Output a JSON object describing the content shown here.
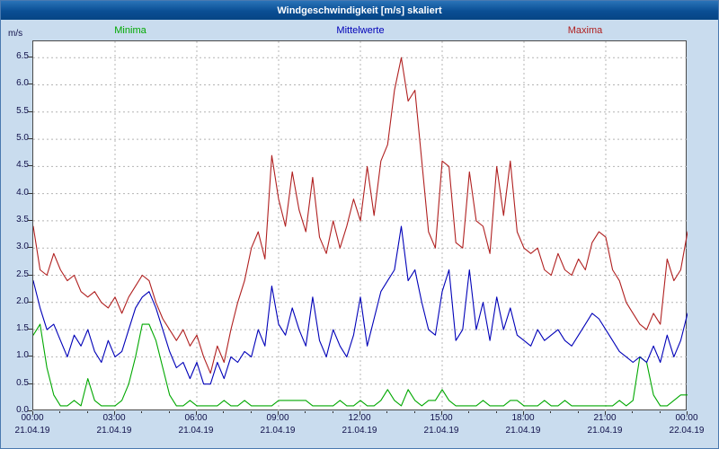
{
  "window": {
    "title": "Windgeschwindigkeit [m/s] skaliert"
  },
  "legend": [
    {
      "label": "Minima",
      "color": "#00a800"
    },
    {
      "label": "Mittelwerte",
      "color": "#0000b8"
    },
    {
      "label": "Maxima",
      "color": "#b02020"
    }
  ],
  "axis": {
    "unit_label": "m/s",
    "y_min": 0.0,
    "y_max_display": 6.5,
    "y_step": 0.5,
    "y_tick_labels": [
      "0.0",
      "0.5",
      "1.0",
      "1.5",
      "2.0",
      "2.5",
      "3.0",
      "3.5",
      "4.0",
      "4.5",
      "5.0",
      "5.5",
      "6.0",
      "6.5"
    ],
    "x_hours": [
      0,
      3,
      6,
      9,
      12,
      15,
      18,
      21,
      24
    ],
    "x_time_labels": [
      "00:00",
      "03:00",
      "06:00",
      "09:00",
      "12:00",
      "15:00",
      "18:00",
      "21:00",
      "00:00"
    ],
    "x_date_labels": [
      "21.04.19",
      "21.04.19",
      "21.04.19",
      "21.04.19",
      "21.04.19",
      "21.04.19",
      "21.04.19",
      "21.04.19",
      "22.04.19"
    ]
  },
  "colors": {
    "page_bg": "#c9dcee",
    "titlebar": "#0a4e94",
    "plot_bg": "#ffffff",
    "grid": "#b4b4b4",
    "axis_text": "#10104a",
    "plot_border": "#4a4a4a"
  },
  "chart_data": {
    "type": "line",
    "title": "Windgeschwindigkeit [m/s] skaliert",
    "xlabel": "",
    "ylabel": "m/s",
    "x_unit": "hours",
    "x_start": 0,
    "x_end": 24,
    "x_interval_minutes": 15,
    "ylim": [
      0,
      6.8
    ],
    "grid": "dashed",
    "legend_position": "top",
    "series": [
      {
        "name": "Minima",
        "color": "#00a800",
        "values": [
          1.4,
          1.6,
          0.8,
          0.3,
          0.1,
          0.1,
          0.2,
          0.1,
          0.6,
          0.2,
          0.1,
          0.1,
          0.1,
          0.2,
          0.5,
          1.0,
          1.6,
          1.6,
          1.3,
          0.8,
          0.3,
          0.1,
          0.1,
          0.2,
          0.1,
          0.1,
          0.1,
          0.1,
          0.2,
          0.1,
          0.1,
          0.2,
          0.1,
          0.1,
          0.1,
          0.1,
          0.2,
          0.2,
          0.2,
          0.2,
          0.2,
          0.1,
          0.1,
          0.1,
          0.1,
          0.2,
          0.1,
          0.1,
          0.2,
          0.1,
          0.1,
          0.2,
          0.4,
          0.2,
          0.1,
          0.4,
          0.2,
          0.1,
          0.2,
          0.2,
          0.4,
          0.2,
          0.1,
          0.1,
          0.1,
          0.1,
          0.2,
          0.1,
          0.1,
          0.1,
          0.2,
          0.2,
          0.1,
          0.1,
          0.1,
          0.2,
          0.1,
          0.1,
          0.2,
          0.1,
          0.1,
          0.1,
          0.1,
          0.1,
          0.1,
          0.1,
          0.2,
          0.1,
          0.2,
          1.0,
          0.9,
          0.3,
          0.1,
          0.1,
          0.2,
          0.3,
          0.3
        ]
      },
      {
        "name": "Mittelwerte",
        "color": "#0000b8",
        "values": [
          2.4,
          1.9,
          1.5,
          1.6,
          1.3,
          1.0,
          1.4,
          1.2,
          1.5,
          1.1,
          0.9,
          1.3,
          1.0,
          1.1,
          1.5,
          1.9,
          2.1,
          2.2,
          1.9,
          1.5,
          1.1,
          0.8,
          0.9,
          0.6,
          0.9,
          0.5,
          0.5,
          0.9,
          0.6,
          1.0,
          0.9,
          1.1,
          1.0,
          1.5,
          1.2,
          2.3,
          1.6,
          1.4,
          1.9,
          1.5,
          1.2,
          2.1,
          1.3,
          1.0,
          1.5,
          1.2,
          1.0,
          1.4,
          2.1,
          1.2,
          1.7,
          2.2,
          2.4,
          2.6,
          3.4,
          2.4,
          2.6,
          2.0,
          1.5,
          1.4,
          2.2,
          2.6,
          1.3,
          1.5,
          2.6,
          1.5,
          2.0,
          1.3,
          2.1,
          1.5,
          1.9,
          1.4,
          1.3,
          1.2,
          1.5,
          1.3,
          1.4,
          1.5,
          1.3,
          1.2,
          1.4,
          1.6,
          1.8,
          1.7,
          1.5,
          1.3,
          1.1,
          1.0,
          0.9,
          1.0,
          0.9,
          1.2,
          0.9,
          1.4,
          1.0,
          1.3,
          1.8
        ]
      },
      {
        "name": "Maxima",
        "color": "#b02020",
        "values": [
          3.4,
          2.6,
          2.5,
          2.9,
          2.6,
          2.4,
          2.5,
          2.2,
          2.1,
          2.2,
          2.0,
          1.9,
          2.1,
          1.8,
          2.1,
          2.3,
          2.5,
          2.4,
          2.0,
          1.7,
          1.5,
          1.3,
          1.5,
          1.2,
          1.4,
          1.0,
          0.7,
          1.2,
          0.9,
          1.5,
          2.0,
          2.4,
          3.0,
          3.3,
          2.8,
          4.7,
          3.9,
          3.4,
          4.4,
          3.7,
          3.3,
          4.3,
          3.2,
          2.9,
          3.5,
          3.0,
          3.4,
          3.9,
          3.5,
          4.5,
          3.6,
          4.6,
          4.9,
          5.9,
          6.5,
          5.7,
          5.9,
          4.6,
          3.3,
          3.0,
          4.6,
          4.5,
          3.1,
          3.0,
          4.4,
          3.5,
          3.4,
          2.9,
          4.5,
          3.6,
          4.6,
          3.3,
          3.0,
          2.9,
          3.0,
          2.6,
          2.5,
          2.9,
          2.6,
          2.5,
          2.8,
          2.6,
          3.1,
          3.3,
          3.2,
          2.6,
          2.4,
          2.0,
          1.8,
          1.6,
          1.5,
          1.8,
          1.6,
          2.8,
          2.4,
          2.6,
          3.3
        ]
      }
    ]
  }
}
